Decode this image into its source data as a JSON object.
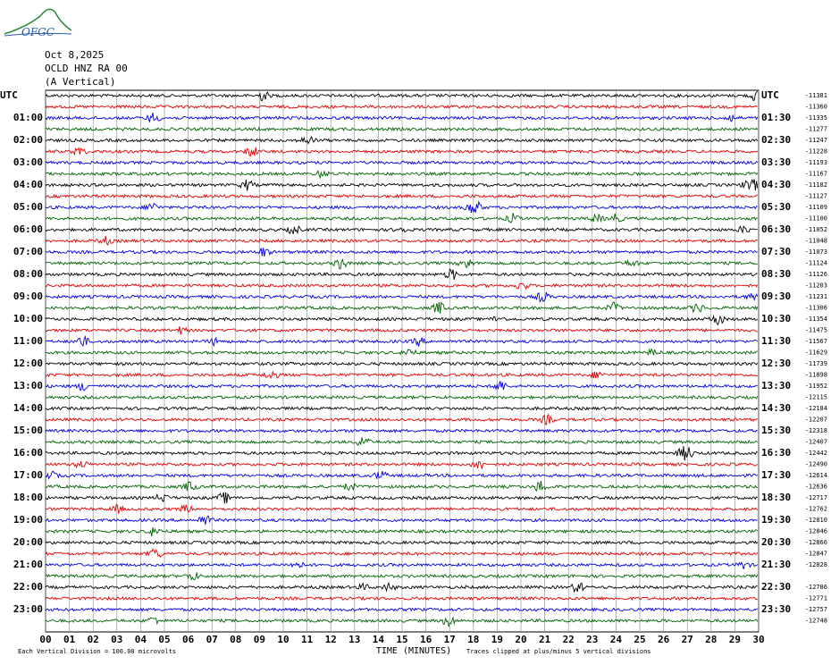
{
  "header": {
    "logo": "OFGC",
    "date": "Oct 8,2025",
    "station": "OCLD HNZ RA 00",
    "component": "(A Vertical)"
  },
  "left_labels": [
    "UTC",
    "01:00",
    "02:00",
    "03:00",
    "04:00",
    "05:00",
    "06:00",
    "07:00",
    "08:00",
    "09:00",
    "10:00",
    "11:00",
    "12:00",
    "13:00",
    "14:00",
    "15:00",
    "16:00",
    "17:00",
    "18:00",
    "19:00",
    "20:00",
    "21:00",
    "22:00",
    "23:00"
  ],
  "right_labels": [
    "UTC",
    "01:30",
    "02:30",
    "03:30",
    "04:30",
    "05:30",
    "06:30",
    "07:30",
    "08:30",
    "09:30",
    "10:30",
    "11:30",
    "12:30",
    "13:30",
    "14:30",
    "15:30",
    "16:30",
    "17:30",
    "18:30",
    "19:30",
    "20:30",
    "21:30",
    "22:30",
    "23:30"
  ],
  "trace_offsets": [
    -11381,
    -11360,
    -11335,
    -11277,
    -11247,
    -11228,
    -11193,
    -11167,
    -11182,
    -11127,
    -11109,
    -11100,
    -11052,
    -11048,
    -11073,
    -11124,
    -11126,
    -11203,
    -11231,
    -11306,
    -11354,
    -11475,
    -11567,
    -11629,
    -11739,
    -11898,
    -11952,
    -12115,
    -12184,
    -12207,
    -12318,
    -12407,
    -12442,
    -12490,
    -12614,
    -12636,
    -12717,
    -12762,
    -12810,
    -12846,
    -12866,
    -12847,
    -12828,
    null,
    -12786,
    -12771,
    -12757,
    -12748
  ],
  "trace_colors": [
    "#000000",
    "#e00000",
    "#0000e0",
    "#006400"
  ],
  "x_ticks": [
    "00",
    "01",
    "02",
    "03",
    "04",
    "05",
    "06",
    "07",
    "08",
    "09",
    "10",
    "11",
    "12",
    "13",
    "14",
    "15",
    "16",
    "17",
    "18",
    "19",
    "20",
    "21",
    "22",
    "23",
    "24",
    "25",
    "26",
    "27",
    "28",
    "29",
    "30"
  ],
  "x_axis_title": "TIME (MINUTES)",
  "footer": {
    "scale_note": "Each Vertical Division =  100.00 microvolts",
    "clip_note": "Traces clipped at plus/minus 5 vertical divisions"
  }
}
